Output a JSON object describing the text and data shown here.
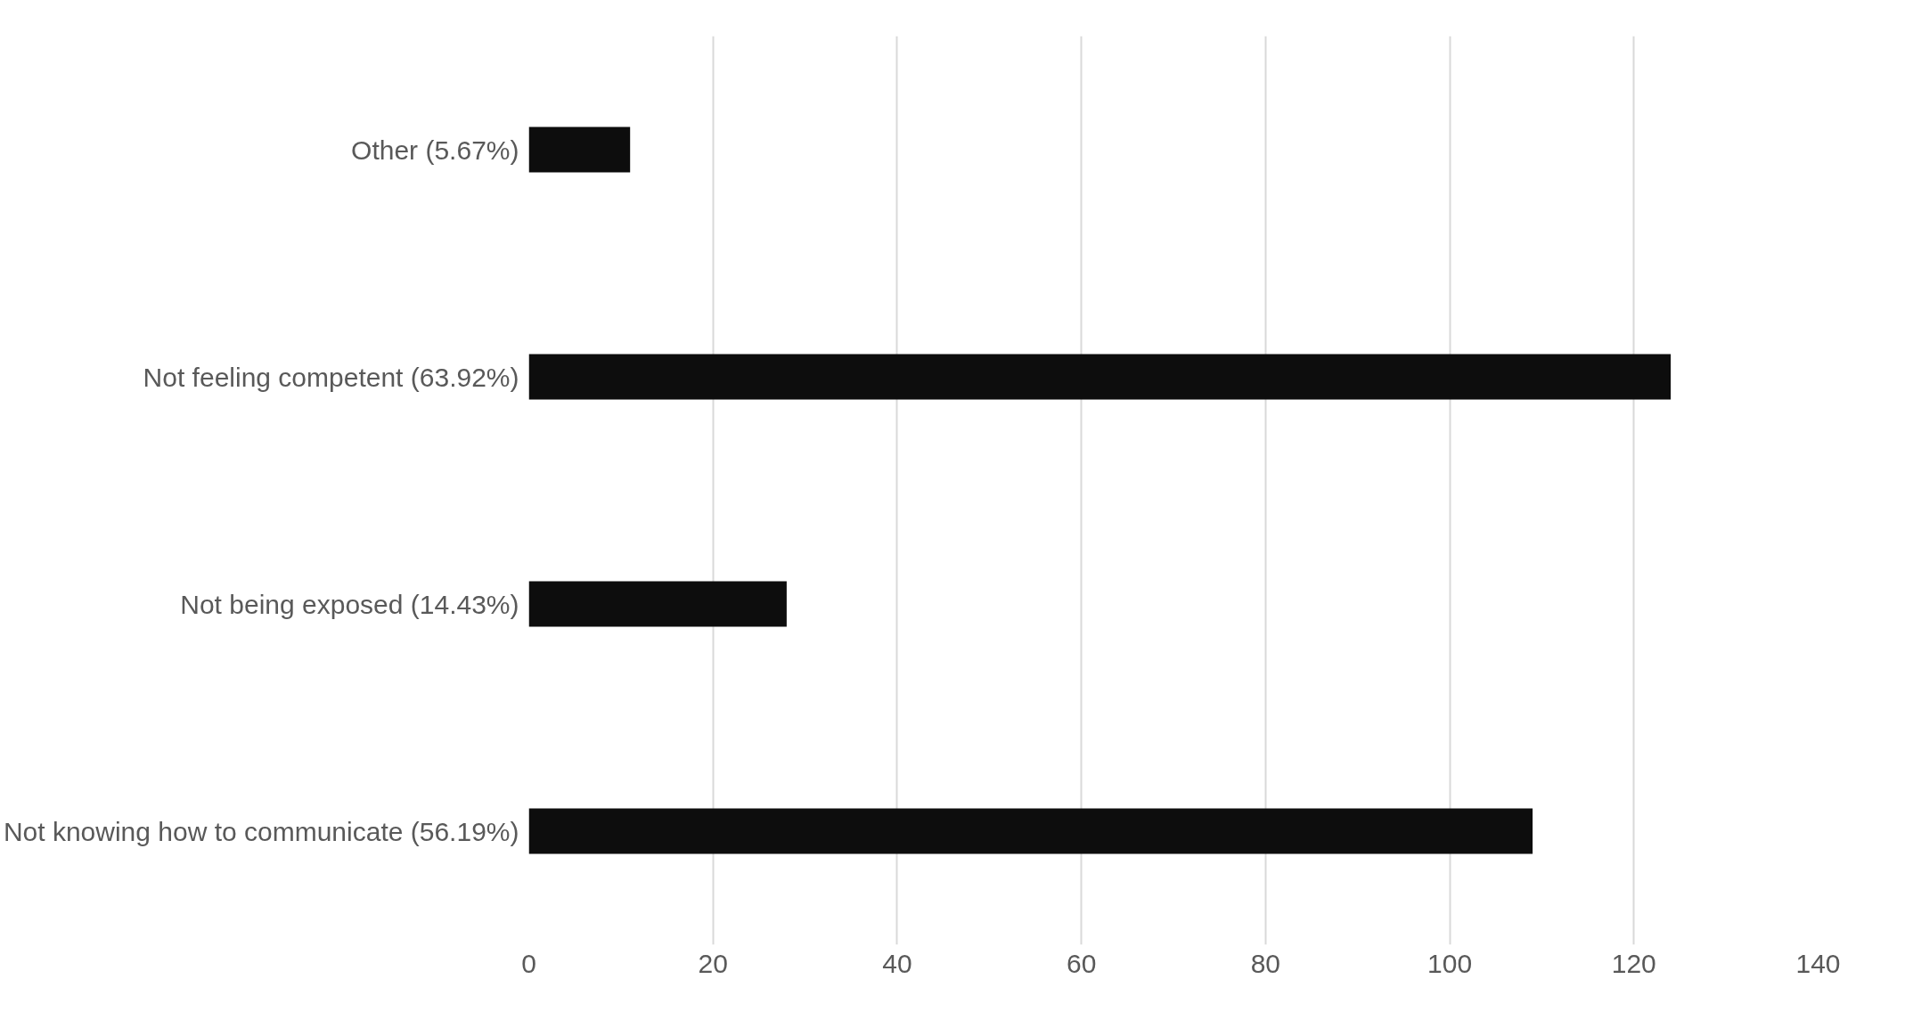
{
  "chart_data": {
    "type": "bar",
    "orientation": "horizontal",
    "categories": [
      "Other (5.67%)",
      "Not feeling competent (63.92%)",
      "Not being exposed (14.43%)",
      "Not knowing how to communicate (56.19%)"
    ],
    "values": [
      11,
      124,
      28,
      109
    ],
    "color": "#0d0d0d",
    "xlim": [
      0,
      140
    ],
    "xticks": [
      0,
      20,
      40,
      60,
      80,
      100,
      120,
      140
    ],
    "grid": "x"
  }
}
